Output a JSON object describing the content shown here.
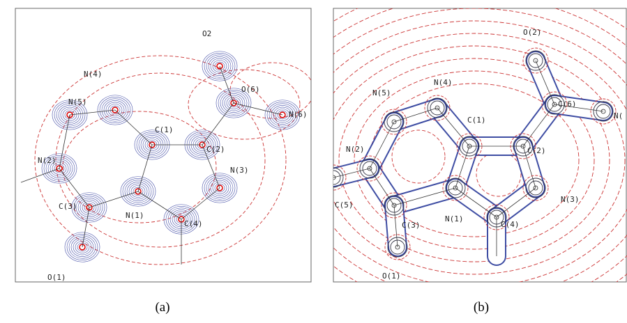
{
  "panels": [
    {
      "caption": "(a)",
      "atoms": [
        "O2",
        "N(4)",
        "N(5)",
        "C(1)",
        "C(2)",
        "O(6)",
        "N(6)",
        "N(2)",
        "N(3)",
        "C(3)",
        "N(1)",
        "C(4)",
        "O(1)"
      ]
    },
    {
      "caption": "(b)",
      "atoms": [
        "O(2)",
        "N(4)",
        "N(5)",
        "C(6)",
        "C(1)",
        "N(",
        "C(2)",
        "N(2)",
        "N(3)",
        "C(5)",
        "C(3)",
        "N(1)",
        "C(4)",
        "O(1)"
      ]
    }
  ]
}
